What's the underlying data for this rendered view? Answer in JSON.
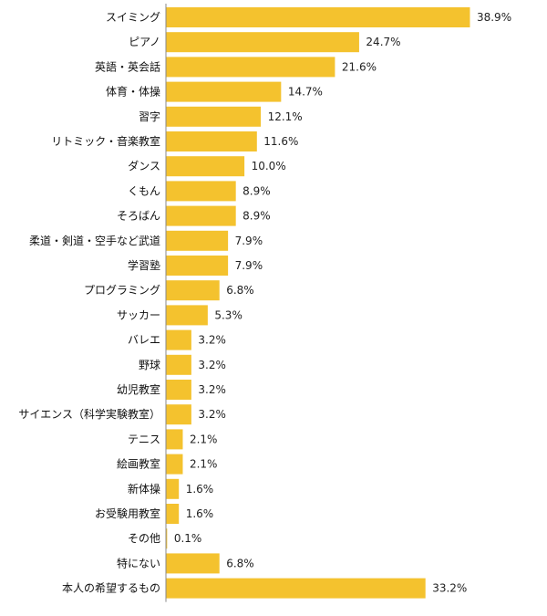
{
  "chart_data": {
    "type": "bar",
    "orientation": "horizontal",
    "categories": [
      "スイミング",
      "ピアノ",
      "英語・英会話",
      "体育・体操",
      "習字",
      "リトミック・音楽教室",
      "ダンス",
      "くもん",
      "そろばん",
      "柔道・剣道・空手など武道",
      "学習塾",
      "プログラミング",
      "サッカー",
      "バレエ",
      "野球",
      "幼児教室",
      "サイエンス（科学実験教室）",
      "テニス",
      "絵画教室",
      "新体操",
      "お受験用教室",
      "その他",
      "特にない",
      "本人の希望するもの"
    ],
    "values": [
      38.9,
      24.7,
      21.6,
      14.7,
      12.1,
      11.6,
      10.0,
      8.9,
      8.9,
      7.9,
      7.9,
      6.8,
      5.3,
      3.2,
      3.2,
      3.2,
      3.2,
      2.1,
      2.1,
      1.6,
      1.6,
      0.1,
      6.8,
      33.2
    ],
    "value_labels": [
      "38.9%",
      "24.7%",
      "21.6%",
      "14.7%",
      "12.1%",
      "11.6%",
      "10.0%",
      "8.9%",
      "8.9%",
      "7.9%",
      "7.9%",
      "6.8%",
      "5.3%",
      "3.2%",
      "3.2%",
      "3.2%",
      "3.2%",
      "2.1%",
      "2.1%",
      "1.6%",
      "1.6%",
      "0.1%",
      "6.8%",
      "33.2%"
    ],
    "unit": "%",
    "bar_color": "#f4c22e",
    "axis_color": "#888888",
    "grid": false,
    "legend": "none"
  }
}
